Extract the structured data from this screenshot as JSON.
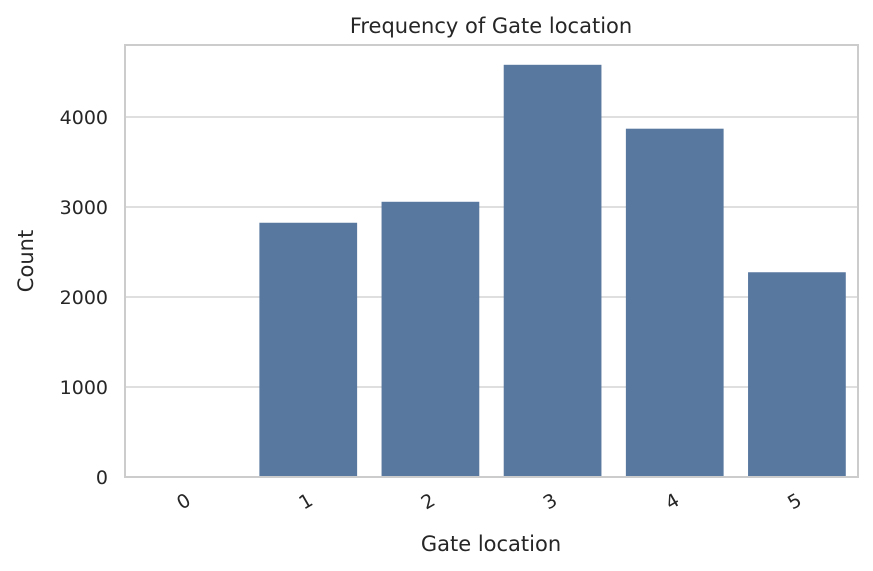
{
  "chart_data": {
    "type": "bar",
    "title": "Frequency of Gate location",
    "xlabel": "Gate location",
    "ylabel": "Count",
    "categories": [
      "0",
      "1",
      "2",
      "3",
      "4",
      "5"
    ],
    "values": [
      1,
      2825,
      3058,
      4580,
      3870,
      2275
    ],
    "yticks": [
      "0",
      "1000",
      "2000",
      "3000",
      "4000"
    ],
    "ylim": [
      0,
      4800
    ],
    "grid": true,
    "bar_color": "#5878a0",
    "legend": "none"
  }
}
